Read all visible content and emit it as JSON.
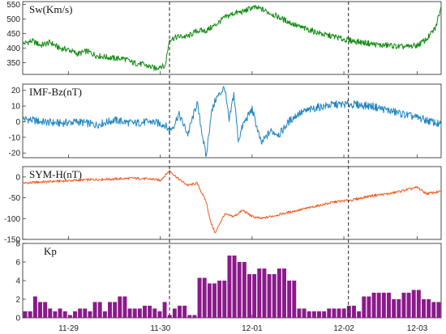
{
  "chart_data": [
    {
      "type": "line",
      "title": "Sw(Km/s)",
      "ylim": [
        310,
        560
      ],
      "yticks": [
        350,
        400,
        450,
        500,
        550
      ],
      "color": "#128a12",
      "series": [
        {
          "x": [
            0,
            0.1,
            0.2,
            0.3,
            0.4,
            0.5,
            0.6,
            0.7,
            0.8,
            0.9,
            1.0,
            1.1,
            1.2,
            1.3,
            1.4,
            1.45,
            1.5,
            1.55,
            1.6,
            1.7,
            1.8,
            1.9,
            2.0,
            2.1,
            2.2,
            2.3,
            2.4,
            2.5,
            2.6,
            2.7,
            2.8,
            2.9,
            3.0,
            3.1,
            3.2,
            3.3,
            3.4,
            3.5,
            3.6,
            3.7,
            3.8,
            3.9,
            4.0,
            4.1,
            4.2,
            4.3,
            4.4,
            4.5,
            4.56
          ],
          "values": [
            415,
            425,
            410,
            420,
            400,
            395,
            380,
            390,
            375,
            370,
            365,
            365,
            350,
            345,
            335,
            330,
            340,
            335,
            430,
            440,
            440,
            460,
            460,
            480,
            505,
            520,
            525,
            540,
            535,
            520,
            505,
            490,
            475,
            465,
            455,
            445,
            440,
            430,
            425,
            420,
            415,
            410,
            410,
            405,
            405,
            410,
            430,
            470,
            545
          ]
        }
      ]
    },
    {
      "type": "line",
      "title": "IMF-Bz(nT)",
      "ylim": [
        -23,
        24
      ],
      "yticks": [
        -20,
        -10,
        0,
        10,
        20
      ],
      "color": "#1f85c0",
      "series": [
        {
          "x": [
            0,
            0.2,
            0.4,
            0.6,
            0.8,
            1.0,
            1.2,
            1.4,
            1.55,
            1.6,
            1.65,
            1.7,
            1.8,
            1.9,
            2.0,
            2.05,
            2.1,
            2.2,
            2.25,
            2.3,
            2.35,
            2.4,
            2.5,
            2.6,
            2.7,
            2.8,
            2.9,
            3.0,
            3.2,
            3.4,
            3.6,
            3.8,
            4.0,
            4.2,
            4.4,
            4.56
          ],
          "values": [
            2,
            0,
            -1,
            0,
            -2,
            1,
            -1,
            0,
            -2,
            -6,
            -2,
            5,
            -8,
            12,
            -23,
            4,
            14,
            22,
            0,
            18,
            -12,
            -2,
            8,
            -14,
            -6,
            -8,
            0,
            5,
            9,
            11,
            11,
            10,
            7,
            4,
            1,
            -2
          ]
        }
      ]
    },
    {
      "type": "line",
      "title": "SYM-H(nT)",
      "ylim": [
        -150,
        25
      ],
      "yticks": [
        -150,
        -100,
        -50,
        0
      ],
      "color": "#f05a1e",
      "series": [
        {
          "x": [
            0,
            0.2,
            0.4,
            0.6,
            0.8,
            1.0,
            1.2,
            1.4,
            1.5,
            1.6,
            1.7,
            1.8,
            1.9,
            2.0,
            2.05,
            2.1,
            2.15,
            2.2,
            2.3,
            2.4,
            2.5,
            2.6,
            2.8,
            3.0,
            3.2,
            3.4,
            3.6,
            3.8,
            4.0,
            4.2,
            4.3,
            4.4,
            4.56
          ],
          "values": [
            -15,
            -12,
            -10,
            -8,
            -6,
            -5,
            -3,
            -5,
            -8,
            15,
            -5,
            -20,
            -15,
            -60,
            -110,
            -135,
            -110,
            -90,
            -95,
            -80,
            -95,
            -100,
            -90,
            -80,
            -70,
            -60,
            -55,
            -45,
            -40,
            -30,
            -25,
            -40,
            -35
          ]
        }
      ]
    },
    {
      "type": "bar",
      "title": "Kp",
      "ylim": [
        0,
        8
      ],
      "yticks": [
        0,
        2,
        4,
        6,
        8
      ],
      "color": "#8b1a8b",
      "values": [
        0.7,
        0.7,
        2.3,
        1.7,
        1.7,
        1.0,
        0.7,
        1.0,
        0.7,
        0.3,
        0.7,
        1.0,
        1.0,
        0.7,
        1.7,
        1.7,
        0.7,
        1.7,
        1.7,
        2.3,
        2.3,
        1.0,
        1.0,
        1.0,
        1.3,
        1.3,
        1.0,
        0.7,
        1.7,
        0.3,
        1.0,
        1.3,
        1.3,
        0.3,
        0.3,
        4.3,
        4.3,
        3.7,
        3.7,
        4.0,
        4.0,
        6.7,
        6.7,
        6.0,
        6.0,
        4.7,
        4.7,
        5.3,
        5.3,
        4.7,
        4.7,
        5.3,
        5.3,
        4.0,
        4.0,
        1.0,
        1.0,
        0.7,
        0.7,
        0.7,
        0.7,
        1.0,
        1.0,
        1.0,
        1.0,
        1.3,
        1.3,
        0.7,
        2.3,
        2.3,
        2.7,
        2.7,
        2.7,
        2.7,
        2.0,
        2.0,
        2.7,
        2.7,
        3.0,
        3.0,
        2.0,
        2.0,
        1.7,
        1.7
      ]
    }
  ],
  "x_axis": {
    "range": [
      0,
      4.56
    ],
    "ticks": [
      0.5,
      1.5,
      2.5,
      3.5,
      4.3
    ],
    "tick_labels": [
      "11-29",
      "11-30",
      "12-01",
      "12-02",
      "12-03"
    ],
    "event_lines": [
      1.6,
      3.55
    ]
  }
}
